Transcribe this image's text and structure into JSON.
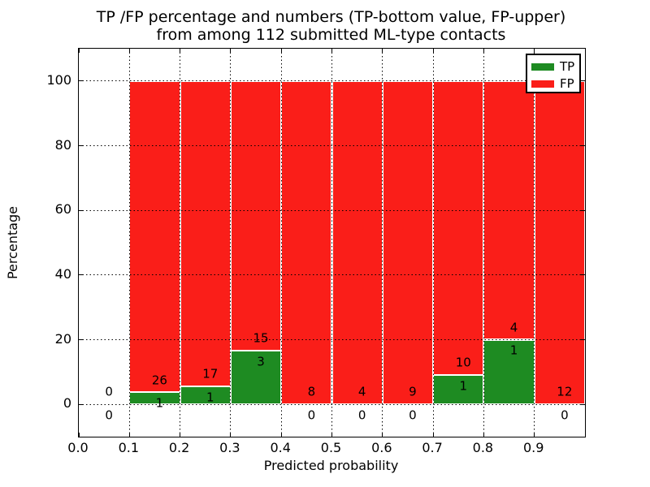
{
  "title": {
    "line1": "TP /FP percentage and numbers (TP-bottom value, FP-upper)",
    "line2": "from among 112 submitted ML-type contacts"
  },
  "axes": {
    "xlabel": "Predicted probability",
    "ylabel": "Percentage"
  },
  "legend": {
    "items": [
      {
        "label": "TP",
        "color": "#1e8b22"
      },
      {
        "label": "FP",
        "color": "#fa1e19"
      }
    ]
  },
  "colors": {
    "tp_green": "#1e8b22",
    "fp_red": "#fa1e19",
    "grid": "#000000",
    "background": "#ffffff"
  },
  "chart_data": {
    "type": "bar",
    "stacked": true,
    "title": "TP /FP percentage and numbers (TP-bottom value, FP-upper) from among 112 submitted ML-type contacts",
    "xlabel": "Predicted probability",
    "ylabel": "Percentage",
    "total_submitted": 112,
    "xlim": [
      0.0,
      1.0
    ],
    "ylim": [
      -10,
      110
    ],
    "grid": "dotted",
    "legend_position": "upper right",
    "x_tick_values": [
      0.0,
      0.1,
      0.2,
      0.3,
      0.4,
      0.5,
      0.6,
      0.7,
      0.8,
      0.9
    ],
    "x_tick_labels": [
      "0.0",
      "0.1",
      "0.2",
      "0.3",
      "0.4",
      "0.5",
      "0.6",
      "0.7",
      "0.8",
      "0.9"
    ],
    "y_tick_values": [
      0,
      20,
      40,
      60,
      80,
      100
    ],
    "y_tick_labels": [
      "0",
      "20",
      "40",
      "60",
      "80",
      "100"
    ],
    "bin_edges": [
      0.0,
      0.1,
      0.2,
      0.3,
      0.4,
      0.5,
      0.6,
      0.7,
      0.8,
      0.9,
      1.0
    ],
    "series": [
      {
        "name": "TP",
        "color": "#1e8b22",
        "counts": [
          0,
          1,
          1,
          3,
          0,
          0,
          0,
          1,
          1,
          0
        ],
        "percent": [
          0,
          3.7,
          5.56,
          16.67,
          0,
          0,
          0,
          9.09,
          20.0,
          0
        ]
      },
      {
        "name": "FP",
        "color": "#fa1e19",
        "counts": [
          0,
          26,
          17,
          15,
          8,
          4,
          9,
          10,
          4,
          12
        ],
        "percent": [
          0,
          96.3,
          94.44,
          83.33,
          100,
          100,
          100,
          90.91,
          80.0,
          100
        ]
      }
    ]
  }
}
